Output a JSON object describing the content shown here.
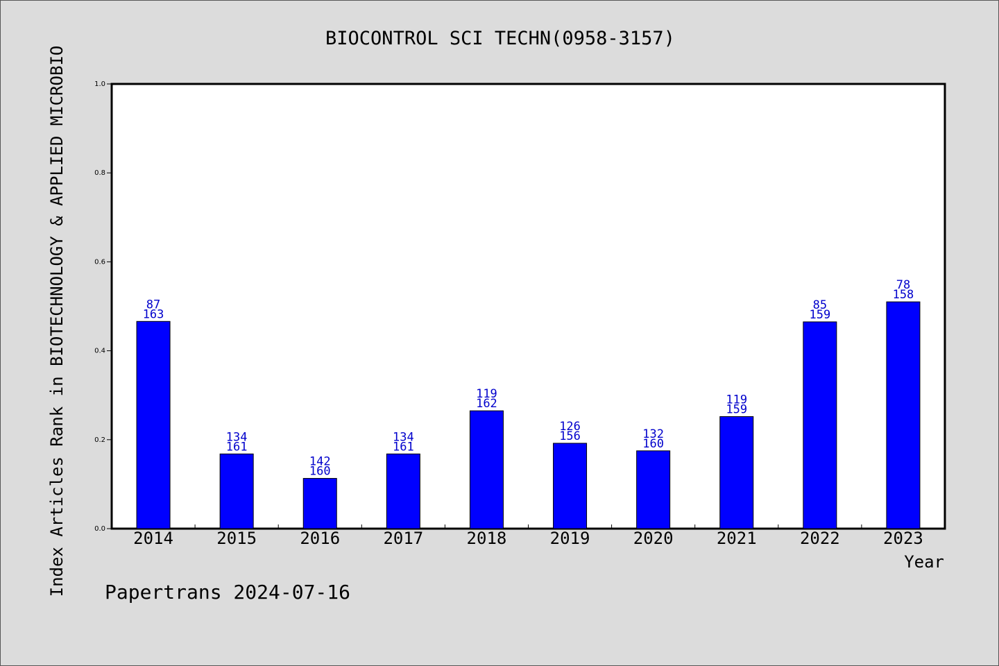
{
  "chart_data": {
    "type": "bar",
    "title": "BIOCONTROL SCI TECHN(0958-3157)",
    "xlabel": "Year",
    "ylabel": "Index Articles Rank in BIOTECHNOLOGY & APPLIED MICROBIO",
    "ylim": [
      0,
      1.0
    ],
    "yticks": [
      "0.0",
      "0.2",
      "0.4",
      "0.6",
      "0.8",
      "1.0"
    ],
    "categories": [
      "2014",
      "2015",
      "2016",
      "2017",
      "2018",
      "2019",
      "2020",
      "2021",
      "2022",
      "2023"
    ],
    "values": [
      0.466,
      0.168,
      0.113,
      0.168,
      0.265,
      0.192,
      0.175,
      0.252,
      0.465,
      0.51
    ],
    "rank": [
      "87",
      "134",
      "142",
      "134",
      "119",
      "126",
      "132",
      "119",
      "85",
      "78"
    ],
    "total": [
      "163",
      "161",
      "160",
      "161",
      "162",
      "156",
      "160",
      "159",
      "159",
      "158"
    ],
    "bar_color": "#0000ff",
    "label_color": "#0000cc",
    "grid": false
  },
  "footer": {
    "text": "Papertrans 2024-07-16"
  }
}
